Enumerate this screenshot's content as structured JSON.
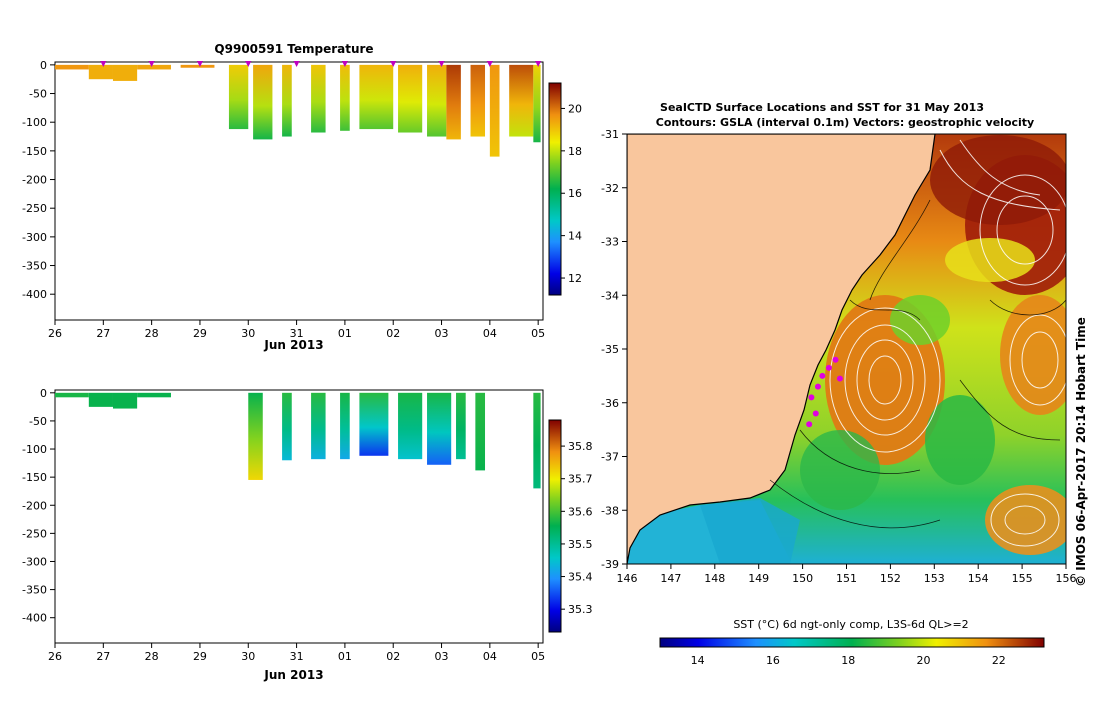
{
  "colors": {
    "land": "#f9c69d",
    "sea_warm": "#e07a12",
    "sea_hot": "#9c1c0c",
    "sea_mid": "#7fd31f",
    "sea_cool": "#1dbb4f",
    "sea_cold": "#22b3d6",
    "marker": "#e000e0",
    "contour_white": "#ffffff",
    "contour_black": "#000000"
  },
  "chart_data": [
    {
      "id": "temperature",
      "type": "heatmap",
      "title": "Q9900591  Temperature",
      "xlabel": "Jun 2013",
      "ylabel": "",
      "x_ticks": [
        "26",
        "27",
        "28",
        "29",
        "30",
        "31",
        "01",
        "02",
        "03",
        "04",
        "05"
      ],
      "x_tick_values": [
        0,
        1,
        2,
        3,
        4,
        5,
        6,
        7,
        8,
        9,
        10
      ],
      "xlim": [
        0,
        10.1
      ],
      "y_ticks": [
        "0",
        "-50",
        "-100",
        "-150",
        "-200",
        "-250",
        "-300",
        "-350",
        "-400"
      ],
      "y_tick_values": [
        0,
        -50,
        -100,
        -150,
        -200,
        -250,
        -300,
        -350,
        -400
      ],
      "ylim": [
        -445,
        5
      ],
      "colorbar": {
        "ticks": [
          "12",
          "14",
          "16",
          "18",
          "20"
        ],
        "tick_values": [
          12,
          14,
          16,
          18,
          20
        ],
        "range": [
          11.2,
          21.2
        ]
      },
      "profile_markers": [
        1,
        2,
        3,
        4,
        5,
        6,
        7,
        8,
        9,
        10
      ],
      "profiles": [
        {
          "x0": 0.0,
          "x1": 0.7,
          "depth": -8,
          "value": 19.6
        },
        {
          "x0": 0.7,
          "x1": 1.2,
          "depth": -25,
          "value": 19.3
        },
        {
          "x0": 1.2,
          "x1": 1.7,
          "depth": -28,
          "value": 19.3
        },
        {
          "x0": 1.7,
          "x1": 2.4,
          "depth": -8,
          "value": 19.4
        },
        {
          "x0": 2.6,
          "x1": 3.3,
          "depth": -5,
          "value": 19.6
        },
        {
          "x0": 3.6,
          "x1": 4.0,
          "depth": -112,
          "value": 18.9,
          "bottom": 16.6
        },
        {
          "x0": 4.1,
          "x1": 4.5,
          "depth": -130,
          "value": 19.4,
          "bottom": 16.4
        },
        {
          "x0": 4.7,
          "x1": 4.9,
          "depth": -125,
          "value": 19.2,
          "bottom": 16.4
        },
        {
          "x0": 5.3,
          "x1": 5.6,
          "depth": -118,
          "value": 19.0,
          "bottom": 16.6
        },
        {
          "x0": 5.9,
          "x1": 6.1,
          "depth": -115,
          "value": 19.1,
          "bottom": 16.8
        },
        {
          "x0": 6.3,
          "x1": 7.0,
          "depth": -112,
          "value": 19.2,
          "bottom": 17.0
        },
        {
          "x0": 7.1,
          "x1": 7.6,
          "depth": -118,
          "value": 19.3,
          "bottom": 17.2
        },
        {
          "x0": 7.7,
          "x1": 8.1,
          "depth": -125,
          "value": 19.3,
          "bottom": 17.0
        },
        {
          "x0": 8.1,
          "x1": 8.4,
          "depth": -130,
          "value": 20.6,
          "bottom": 19.2
        },
        {
          "x0": 8.6,
          "x1": 8.9,
          "depth": -125,
          "value": 20.2,
          "bottom": 19.0
        },
        {
          "x0": 9.0,
          "x1": 9.2,
          "depth": -160,
          "value": 19.6,
          "bottom": 19.0
        },
        {
          "x0": 9.4,
          "x1": 9.9,
          "depth": -125,
          "value": 20.4,
          "bottom": 18.0
        },
        {
          "x0": 9.9,
          "x1": 10.05,
          "depth": -135,
          "value": 18.8,
          "bottom": 16.4
        }
      ]
    },
    {
      "id": "salinity",
      "type": "heatmap",
      "title": "",
      "xlabel": "Jun 2013",
      "ylabel": "",
      "x_ticks": [
        "26",
        "27",
        "28",
        "29",
        "30",
        "31",
        "01",
        "02",
        "03",
        "04",
        "05"
      ],
      "x_tick_values": [
        0,
        1,
        2,
        3,
        4,
        5,
        6,
        7,
        8,
        9,
        10
      ],
      "xlim": [
        0,
        10.1
      ],
      "y_ticks": [
        "0",
        "-50",
        "-100",
        "-150",
        "-200",
        "-250",
        "-300",
        "-350",
        "-400"
      ],
      "y_tick_values": [
        0,
        -50,
        -100,
        -150,
        -200,
        -250,
        -300,
        -350,
        -400
      ],
      "ylim": [
        -445,
        5
      ],
      "colorbar": {
        "ticks": [
          "35.3",
          "35.4",
          "35.5",
          "35.6",
          "35.7",
          "35.8"
        ],
        "tick_values": [
          35.3,
          35.4,
          35.5,
          35.6,
          35.7,
          35.8
        ],
        "range": [
          35.23,
          35.88
        ]
      },
      "profiles": [
        {
          "x0": 0.0,
          "x1": 0.7,
          "depth": -8,
          "value": 35.57
        },
        {
          "x0": 0.7,
          "x1": 1.2,
          "depth": -25,
          "value": 35.56
        },
        {
          "x0": 1.2,
          "x1": 1.7,
          "depth": -28,
          "value": 35.56
        },
        {
          "x0": 1.7,
          "x1": 2.4,
          "depth": -8,
          "value": 35.56
        },
        {
          "x0": 4.0,
          "x1": 4.3,
          "depth": -155,
          "value": 35.56,
          "bottom": 35.72
        },
        {
          "x0": 4.7,
          "x1": 4.9,
          "depth": -120,
          "value": 35.58,
          "bottom": 35.44
        },
        {
          "x0": 5.3,
          "x1": 5.6,
          "depth": -118,
          "value": 35.58,
          "bottom": 35.43
        },
        {
          "x0": 5.9,
          "x1": 6.1,
          "depth": -118,
          "value": 35.57,
          "bottom": 35.42
        },
        {
          "x0": 6.3,
          "x1": 6.9,
          "depth": -112,
          "value": 35.58,
          "bottom": 35.33
        },
        {
          "x0": 7.1,
          "x1": 7.6,
          "depth": -118,
          "value": 35.57,
          "bottom": 35.45
        },
        {
          "x0": 7.7,
          "x1": 8.2,
          "depth": -128,
          "value": 35.57,
          "bottom": 35.36
        },
        {
          "x0": 8.3,
          "x1": 8.5,
          "depth": -118,
          "value": 35.58,
          "bottom": 35.5
        },
        {
          "x0": 8.7,
          "x1": 8.9,
          "depth": -138,
          "value": 35.58,
          "bottom": 35.56
        },
        {
          "x0": 9.9,
          "x1": 10.05,
          "depth": -170,
          "value": 35.58,
          "bottom": 35.52
        }
      ]
    },
    {
      "id": "sst_map",
      "type": "heatmap",
      "title": "SeaICTD Surface Locations and SST for 31 May 2013",
      "subtitle": "Contours: GSLA (interval 0.1m) Vectors: geostrophic velocity",
      "xlabel": "",
      "ylabel": "",
      "x_ticks": [
        "146",
        "147",
        "148",
        "149",
        "150",
        "151",
        "152",
        "153",
        "154",
        "155",
        "156"
      ],
      "x_tick_values": [
        146,
        147,
        148,
        149,
        150,
        151,
        152,
        153,
        154,
        155,
        156
      ],
      "xlim": [
        146,
        156
      ],
      "y_ticks": [
        "-31",
        "-32",
        "-33",
        "-34",
        "-35",
        "-36",
        "-37",
        "-38",
        "-39"
      ],
      "y_tick_values": [
        -31,
        -32,
        -33,
        -34,
        -35,
        -36,
        -37,
        -38,
        -39
      ],
      "ylim": [
        -39,
        -31
      ],
      "colorbar": {
        "label": "SST (°C) 6d ngt-only comp, L3S-6d QL>=2",
        "ticks": [
          "14",
          "16",
          "18",
          "20",
          "22"
        ],
        "tick_values": [
          14,
          16,
          18,
          20,
          22
        ],
        "range": [
          13,
          23.2
        ]
      },
      "ctd_locations": [
        [
          150.2,
          -35.9
        ],
        [
          150.35,
          -35.7
        ],
        [
          150.45,
          -35.5
        ],
        [
          150.6,
          -35.35
        ],
        [
          150.75,
          -35.2
        ],
        [
          150.85,
          -35.55
        ],
        [
          150.3,
          -36.2
        ],
        [
          150.15,
          -36.4
        ]
      ],
      "annotation": "© IMOS 06-Apr-2017 20:14 Hobart Time"
    }
  ]
}
